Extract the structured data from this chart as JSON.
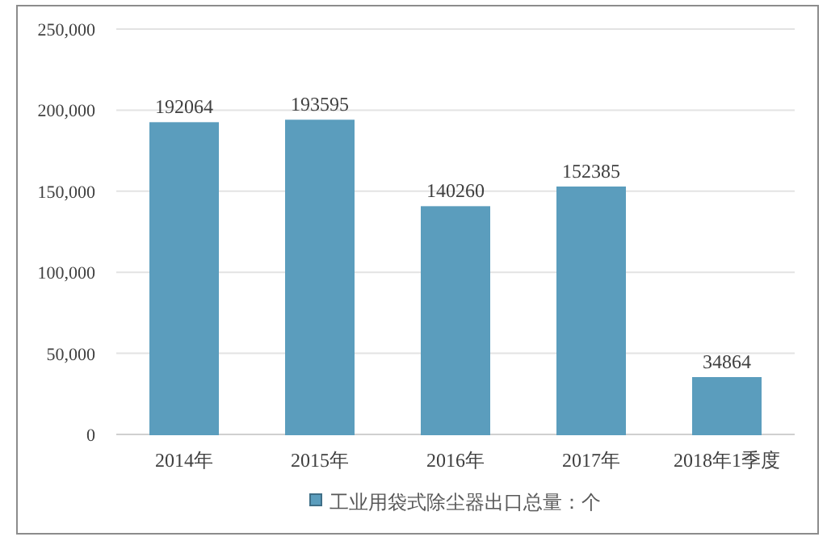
{
  "chart_data": {
    "type": "bar",
    "categories": [
      "2014年",
      "2015年",
      "2016年",
      "2017年",
      "2018年1季度"
    ],
    "series": [
      {
        "name": "工业用袋式除尘器出口总量：个",
        "color": "#5b9dbd",
        "values": [
          192064,
          193595,
          140260,
          152385,
          34864
        ]
      }
    ],
    "ylim": [
      0,
      250000
    ],
    "yticks": [
      {
        "value": 0,
        "label": "0"
      },
      {
        "value": 50000,
        "label": "50,000"
      },
      {
        "value": 100000,
        "label": "100,000"
      },
      {
        "value": 150000,
        "label": "150,000"
      },
      {
        "value": 200000,
        "label": "200,000"
      },
      {
        "value": 250000,
        "label": "250,000"
      }
    ],
    "grid": "y",
    "legend": "bottom",
    "data_labels": true
  }
}
